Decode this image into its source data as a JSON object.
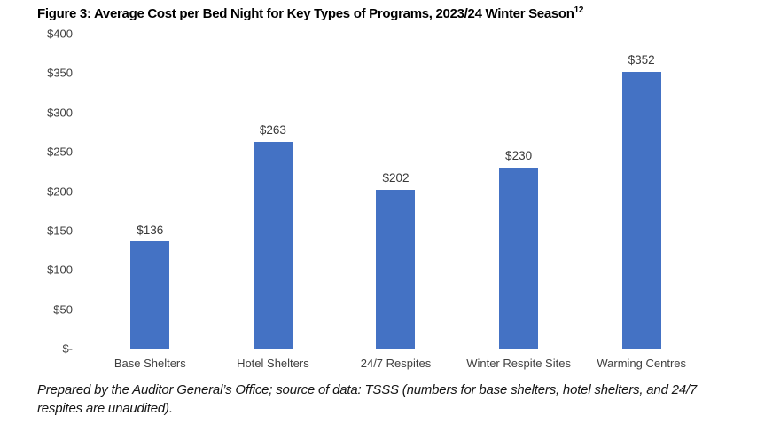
{
  "title": {
    "text": "Figure 3: Average Cost per Bed Night for Key Types of Programs, 2023/24 Winter Season",
    "superscript": "12"
  },
  "chart_data": {
    "type": "bar",
    "title": "Figure 3: Average Cost per Bed Night for Key Types of Programs, 2023/24 Winter Season",
    "categories": [
      "Base Shelters",
      "Hotel Shelters",
      "24/7 Respites",
      "Winter Respite Sites",
      "Warming Centres"
    ],
    "values": [
      136,
      263,
      202,
      230,
      352
    ],
    "value_labels": [
      "$136",
      "$263",
      "$202",
      "$230",
      "$352"
    ],
    "xlabel": "",
    "ylabel": "",
    "ylim": [
      0,
      400
    ],
    "ytick_interval": 50,
    "ytick_labels": [
      "$-",
      "$50",
      "$100",
      "$150",
      "$200",
      "$250",
      "$300",
      "$350",
      "$400"
    ],
    "bar_color": "#4472C4",
    "grid": false,
    "legend": false,
    "axis_line_color": "#d6d6d6"
  },
  "footer": {
    "text": "Prepared by the Auditor General’s Office; source of data: TSSS (numbers for base shelters, hotel shelters, and 24/7 respites are unaudited)."
  }
}
